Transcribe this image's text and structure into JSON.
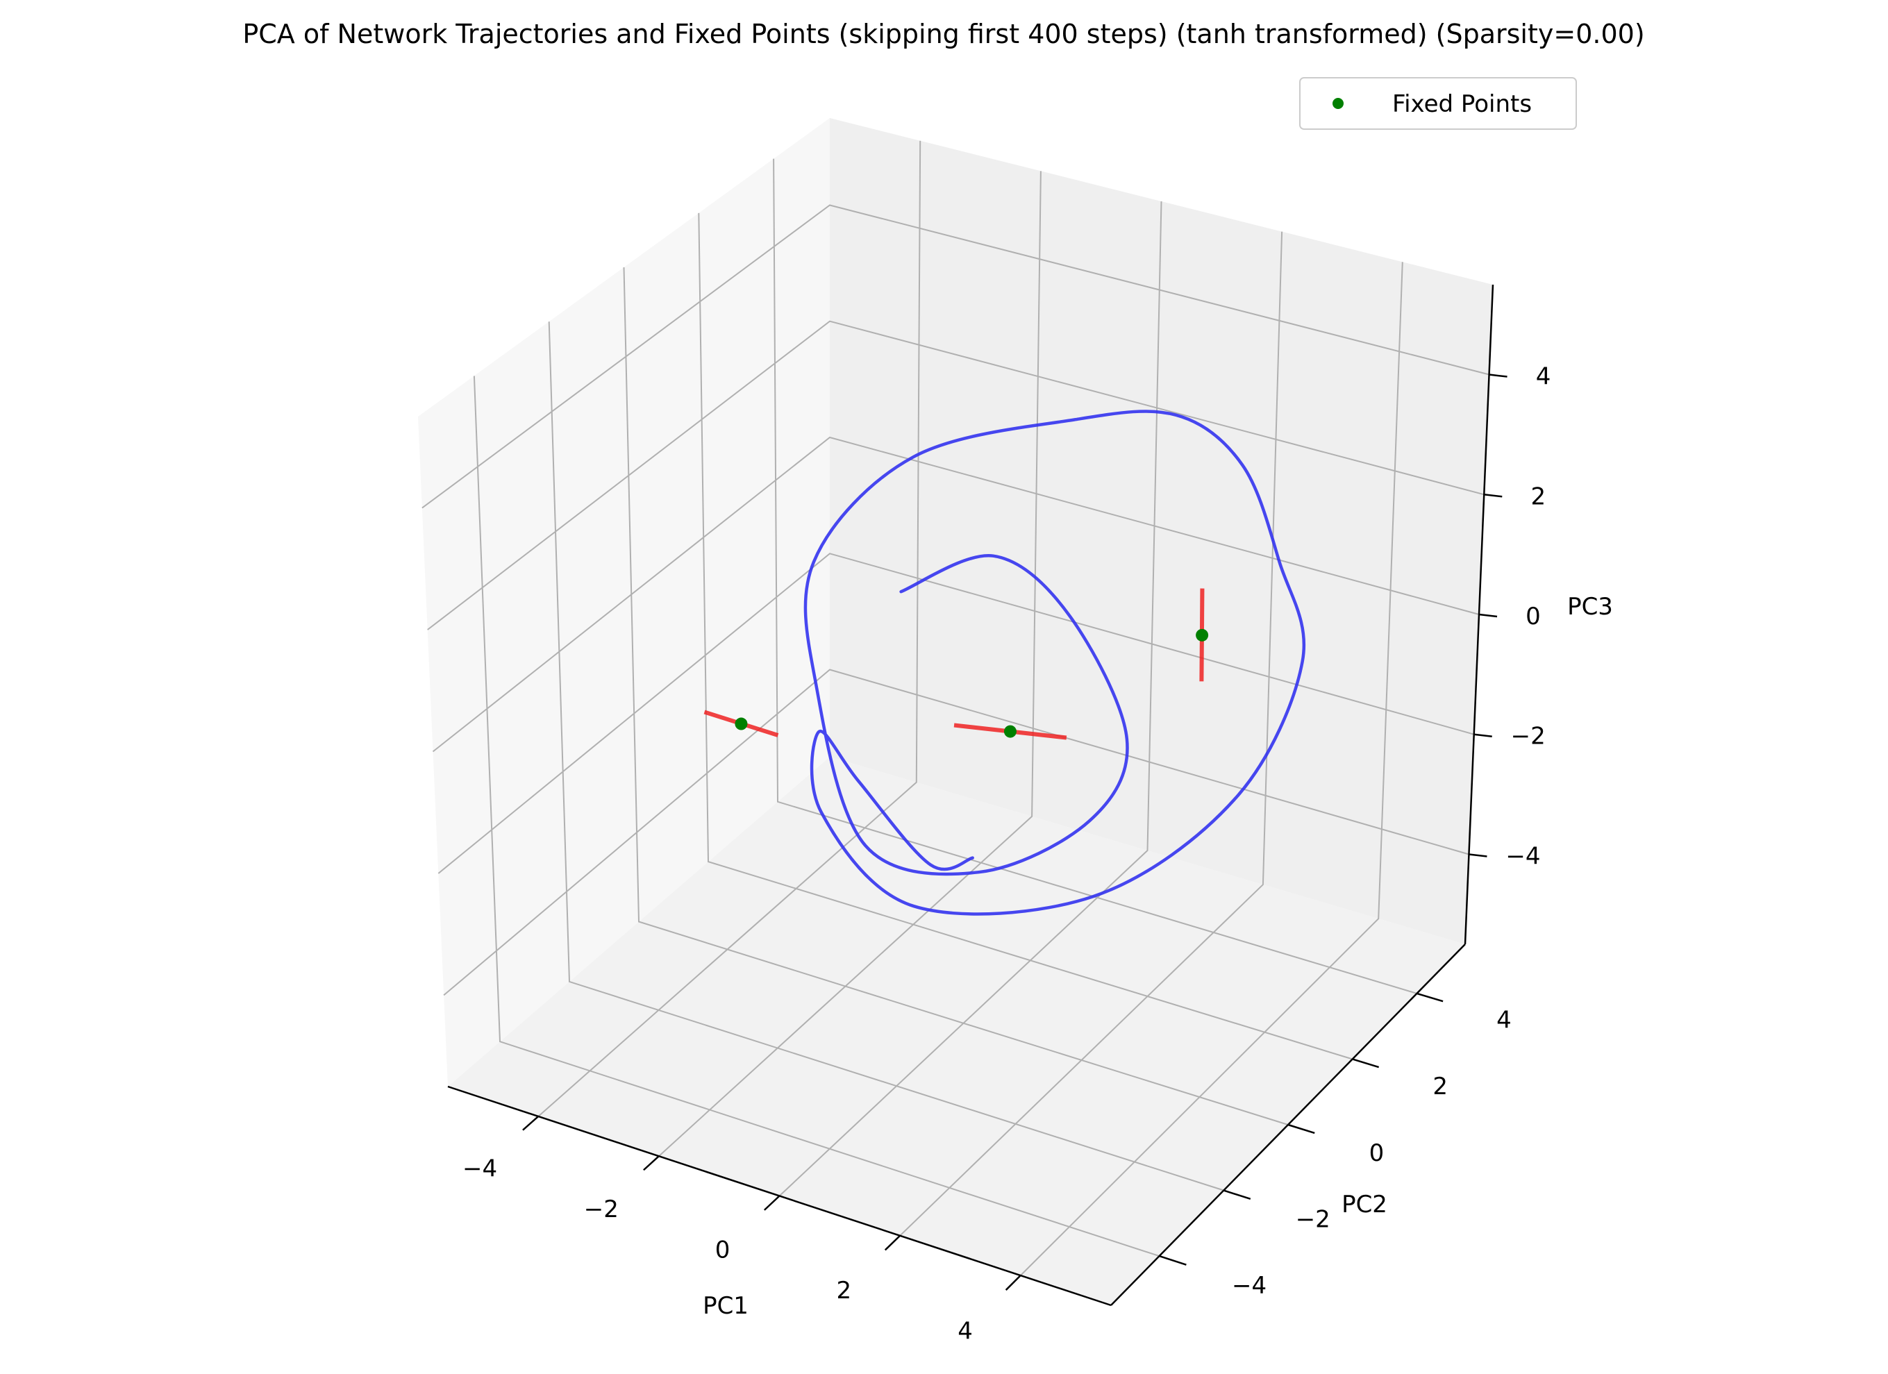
{
  "chart_data": {
    "type": "3d-line",
    "title": "PCA of Network Trajectories and Fixed Points (skipping first 400 steps) (tanh transformed) (Sparsity=0.00)",
    "xlabel": "PC1",
    "ylabel": "PC2",
    "zlabel": "PC3",
    "xlim": [
      -5.5,
      5.5
    ],
    "ylim": [
      -5.5,
      5.5
    ],
    "zlim": [
      -5.5,
      5.5
    ],
    "xticks": [
      "−4",
      "−2",
      "0",
      "2",
      "4"
    ],
    "yticks": [
      "−4",
      "−2",
      "0",
      "2",
      "4"
    ],
    "zticks": [
      "−4",
      "−2",
      "0",
      "2",
      "4"
    ],
    "grid": true,
    "legend": {
      "position": "top-right",
      "entries": [
        {
          "label": "Fixed Points",
          "marker": "circle",
          "color": "#008000"
        }
      ]
    },
    "colors": {
      "trajectory": "#3333ee",
      "fixed_points": "#008000",
      "eigen_directions": "#ee2222"
    },
    "series": [
      {
        "name": "",
        "kind": "trajectory",
        "x": [
          -0.9,
          0.3,
          1.2,
          2.4,
          2.1,
          0.5,
          -1.6,
          -3.3,
          -4.0,
          -2.8,
          -0.2,
          1.5,
          3.0,
          4.2,
          4.9,
          4.3,
          2.5,
          -0.2,
          -2.1,
          -2.6,
          -2.0,
          -0.5,
          0.4
        ],
        "y": [
          0.0,
          0.6,
          1.2,
          0.8,
          0.2,
          -0.3,
          0.0,
          1.5,
          2.6,
          3.4,
          3.6,
          3.6,
          3.0,
          2.1,
          1.6,
          0.7,
          -0.4,
          -1.0,
          -0.4,
          0.4,
          0.5,
          0.0,
          -0.3
        ],
        "z": [
          1.2,
          1.8,
          0.8,
          -0.7,
          -1.8,
          -2.8,
          -3.1,
          -1.7,
          -0.3,
          1.4,
          2.6,
          3.1,
          2.9,
          2.0,
          0.8,
          -1.1,
          -2.6,
          -3.2,
          -2.5,
          -1.7,
          -2.4,
          -3.1,
          -2.6
        ]
      },
      {
        "name": "Fixed Points",
        "kind": "fixed_points",
        "x": [
          -3.8,
          0.6,
          3.2
        ],
        "y": [
          0.2,
          0.5,
          1.6
        ],
        "z": [
          -1.8,
          -0.9,
          0.8
        ]
      }
    ]
  }
}
